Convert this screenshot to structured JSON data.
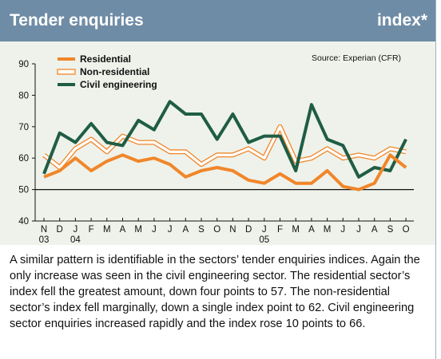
{
  "header": {
    "title": "Tender enquiries",
    "unit_label": "index*"
  },
  "source": "Source: Experian (CFR)",
  "caption": "A similar pattern is identifiable in the sectors’ tender enquiries indices. Again the only increase was seen in the civil engineering sector. The residential sector’s index fell the greatest amount, down four points to 57. The non-residential sector’s index fell marginally, down a single index point to 62. Civil engineering sector enquiries increased rapidly and the index rose 10 points to 66.",
  "colors": {
    "header_bg": "#6f8ca6",
    "plot_bg": "#eef2ea",
    "residential": "#f0862a",
    "non_residential": "#f0862a",
    "civil": "#1f5d45"
  },
  "chart_data": {
    "type": "line",
    "title": "Tender enquiries",
    "ylabel": "",
    "xlabel": "",
    "ylim": [
      40,
      90
    ],
    "yticks": [
      40,
      50,
      60,
      70,
      80,
      90
    ],
    "reference_line": 50,
    "grid": false,
    "legend_position": "top-left",
    "categories": [
      "N",
      "D",
      "J",
      "F",
      "M",
      "A",
      "M",
      "J",
      "J",
      "A",
      "S",
      "O",
      "N",
      "D",
      "J",
      "F",
      "M",
      "A",
      "M",
      "J",
      "J",
      "A",
      "S",
      "O"
    ],
    "year_labels": [
      {
        "index": 0,
        "label": "03"
      },
      {
        "index": 2,
        "label": "04"
      },
      {
        "index": 14,
        "label": "05"
      }
    ],
    "series": [
      {
        "name": "Residential",
        "style": "thick",
        "values": [
          54,
          56,
          60,
          56,
          59,
          61,
          59,
          60,
          58,
          54,
          56,
          57,
          56,
          53,
          52,
          55,
          52,
          52,
          56,
          51,
          50,
          52,
          61,
          57
        ]
      },
      {
        "name": "Non-residential",
        "style": "outline",
        "values": [
          61,
          57,
          63,
          66,
          62,
          67,
          65,
          65,
          62,
          62,
          58,
          61,
          61,
          63,
          60,
          70,
          59,
          60,
          63,
          60,
          61,
          60,
          63,
          62
        ]
      },
      {
        "name": "Civil engineering",
        "style": "solid",
        "values": [
          55,
          68,
          65,
          71,
          65,
          64,
          72,
          69,
          78,
          74,
          74,
          66,
          74,
          65,
          67,
          67,
          56,
          77,
          66,
          64,
          54,
          57,
          56,
          66
        ]
      }
    ]
  }
}
